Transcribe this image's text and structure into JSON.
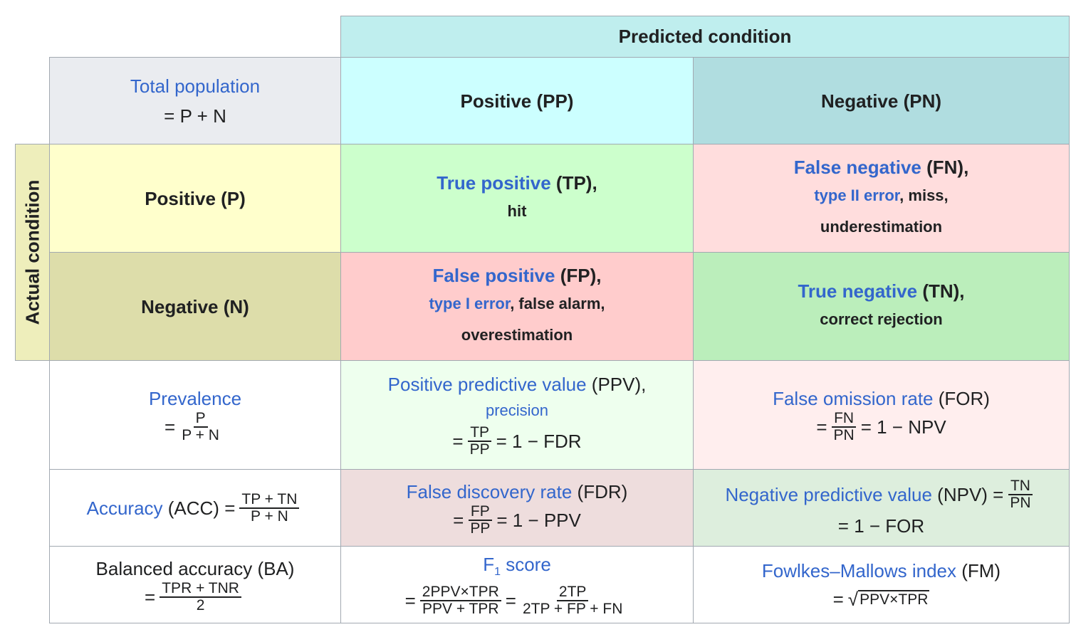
{
  "header": {
    "predicted_condition": "Predicted condition",
    "actual_condition": "Actual condition"
  },
  "total_population": {
    "label": "Total population",
    "formula": "= P + N"
  },
  "pred_positive": "Positive (PP)",
  "pred_negative": "Negative (PN)",
  "actual_positive": "Positive (P)",
  "actual_negative": "Negative (N)",
  "tp": {
    "link": "True positive",
    "abbr": " (TP),",
    "desc": "hit"
  },
  "fn": {
    "link": "False negative",
    "abbr": " (FN),",
    "link2": "type II error",
    "rest": ", miss,",
    "desc": "underestimation"
  },
  "fp": {
    "link": "False positive",
    "abbr": " (FP),",
    "link2": "type I error",
    "rest": ", false alarm,",
    "desc": "overestimation"
  },
  "tn": {
    "link": "True negative",
    "abbr": " (TN),",
    "desc": "correct rejection"
  },
  "prevalence": {
    "label": "Prevalence",
    "eq": "=",
    "num": "P",
    "den": "P + N"
  },
  "ppv": {
    "link": "Positive predictive value",
    "abbr": " (PPV),",
    "link2": "precision",
    "eq": "=",
    "num": "TP",
    "den": "PP",
    "rest": "= 1 − FDR"
  },
  "for": {
    "link": "False omission rate",
    "abbr": " (FOR)",
    "eq": "=",
    "num": "FN",
    "den": "PN",
    "rest": "= 1 − NPV"
  },
  "accuracy": {
    "link": "Accuracy",
    "abbr": " (ACC) =",
    "num": "TP + TN",
    "den": "P + N"
  },
  "fdr": {
    "link": "False discovery rate",
    "abbr": " (FDR)",
    "eq": "=",
    "num": "FP",
    "den": "PP",
    "rest": "= 1 − PPV"
  },
  "npv": {
    "link": "Negative predictive value",
    "abbr": " (NPV) =",
    "num": "TN",
    "den": "PN",
    "rest": "= 1 − FOR"
  },
  "ba": {
    "label": "Balanced accuracy (BA)",
    "eq": "=",
    "num": "TPR + TNR",
    "den": "2"
  },
  "f1": {
    "link": "F",
    "sub": "1",
    "link_rest": " score",
    "eq": "=",
    "num": "2PPV×TPR",
    "den": "PPV + TPR",
    "eq2": "=",
    "num2": "2TP",
    "den2": "2TP + FP + FN"
  },
  "fm": {
    "link": "Fowlkes–Mallows index",
    "abbr": " (FM)",
    "eq": "=",
    "radicand": "PPV×TPR"
  },
  "colors": {
    "header": "#bfeeee",
    "pp": "#ccffff",
    "pn": "#b0dde0",
    "total": "#eaecf0",
    "actual_label": "#eeeebb",
    "ap": "#ffffcc",
    "an": "#ddddaa",
    "tp": "#ccffcc",
    "fn": "#ffdddd",
    "fp": "#ffcccc",
    "tn": "#bbeebb",
    "ppv": "#eeffee",
    "for": "#ffeeee",
    "fdr": "#eedddd",
    "npv": "#ddeedd",
    "link": "#3366cc"
  }
}
